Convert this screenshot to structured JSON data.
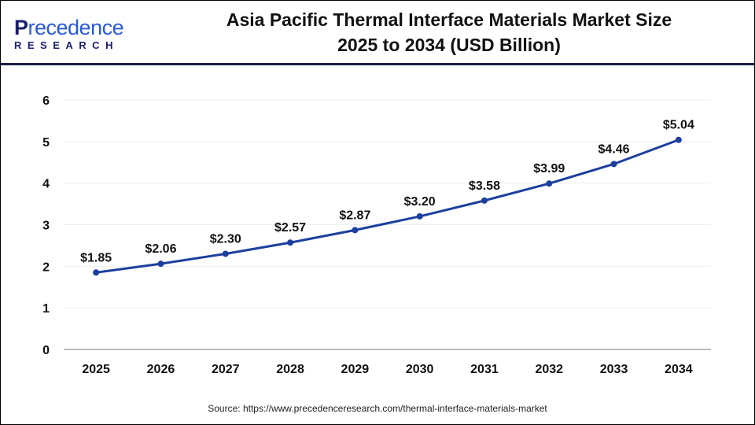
{
  "logo": {
    "top": "Precedence",
    "bottom": "RESEARCH"
  },
  "title": {
    "line1": "Asia Pacific Thermal Interface Materials Market Size",
    "line2": "2025 to 2034 (USD Billion)"
  },
  "source": "Source: https://www.precedenceresearch.com/thermal-interface-materials-market",
  "colors": {
    "line": "#1c3f9e",
    "header_rule": "#1a1f4a"
  },
  "chart_data": {
    "type": "line",
    "title": "Asia Pacific Thermal Interface Materials Market Size 2025 to 2034 (USD Billion)",
    "xlabel": "",
    "ylabel": "",
    "categories": [
      "2025",
      "2026",
      "2027",
      "2028",
      "2029",
      "2030",
      "2031",
      "2032",
      "2033",
      "2034"
    ],
    "values": [
      1.85,
      2.06,
      2.3,
      2.57,
      2.87,
      3.2,
      3.58,
      3.99,
      4.46,
      5.04
    ],
    "data_labels": [
      "$1.85",
      "$2.06",
      "$2.30",
      "$2.57",
      "$2.87",
      "$3.20",
      "$3.58",
      "$3.99",
      "$4.46",
      "$5.04"
    ],
    "ylim": [
      0,
      6
    ],
    "yticks": [
      "0",
      "1",
      "2",
      "3",
      "4",
      "5",
      "6"
    ],
    "grid": true,
    "legend": "none"
  }
}
